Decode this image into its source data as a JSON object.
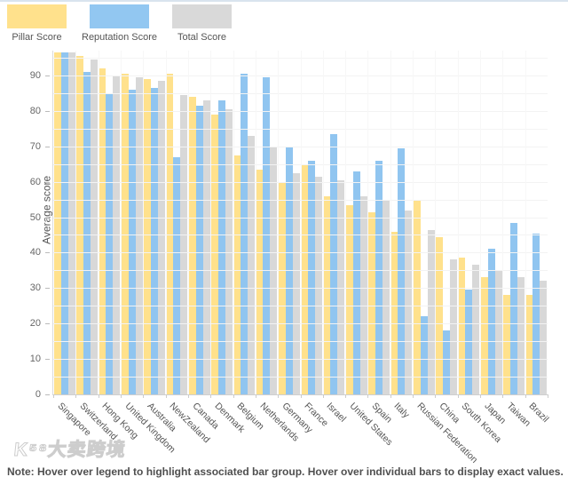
{
  "legend": {
    "items": [
      {
        "label": "Pillar Score",
        "color": "#ffe18c"
      },
      {
        "label": "Reputation Score",
        "color": "#92c7f1"
      },
      {
        "label": "Total Score",
        "color": "#d9d9d9"
      }
    ]
  },
  "chart_data": {
    "type": "bar",
    "title": "",
    "xlabel": "",
    "ylabel": "Average score",
    "ylim": [
      0,
      97
    ],
    "yticks": [
      0,
      10,
      20,
      30,
      40,
      50,
      60,
      70,
      80,
      90
    ],
    "gridline_interval": 5,
    "grid": true,
    "legend_position": "top-left",
    "categories": [
      "Singapore",
      "Switzerland",
      "Hong Kong",
      "United Kingdom",
      "Australia",
      "NewZealand",
      "Canada",
      "Denmark",
      "Belgium",
      "Netherlands",
      "Germany",
      "France",
      "Israel",
      "United States",
      "Spain",
      "Italy",
      "Russian Federation",
      "China",
      "South Korea",
      "Japan",
      "Taiwan",
      "Brazil"
    ],
    "series": [
      {
        "name": "Pillar Score",
        "color": "#ffe18c",
        "values": [
          96.5,
          95.5,
          92,
          90.5,
          89,
          90.5,
          84,
          79,
          67.5,
          63.5,
          60,
          65,
          56,
          53.5,
          51.5,
          46,
          55,
          44.5,
          38.5,
          33,
          28,
          28
        ]
      },
      {
        "name": "Reputation Score",
        "color": "#90c5f0",
        "values": [
          96.5,
          91,
          85,
          86,
          86.5,
          67,
          81.5,
          83,
          90.5,
          89.5,
          70,
          66,
          73.5,
          63,
          66,
          69.5,
          22,
          18,
          29.5,
          41,
          48.5,
          45.5
        ]
      },
      {
        "name": "Total Score",
        "color": "#d8d8d8",
        "values": [
          96.5,
          94.5,
          90,
          89.5,
          88.5,
          84.5,
          83,
          80.5,
          73,
          70,
          62.5,
          61.5,
          60.5,
          56,
          55,
          52,
          46.5,
          38,
          36.5,
          35,
          33,
          32
        ]
      }
    ]
  },
  "note": "Note: Hover over legend to highlight associated bar group. Hover over individual bars to display exact values.",
  "watermark": "K⁵⁸大卖跨境"
}
